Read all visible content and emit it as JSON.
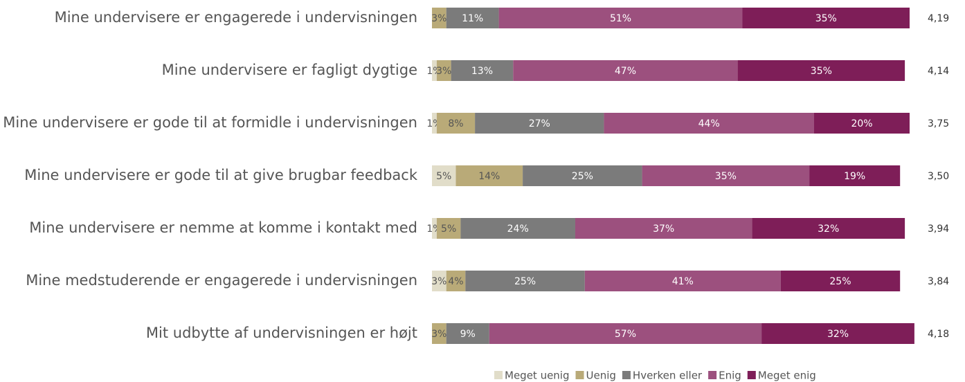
{
  "chart_data": {
    "type": "stacked-bar",
    "categories": [
      "Mine undervisere er engagerede i undervisningen",
      "Mine undervisere er fagligt dygtige",
      "Mine undervisere er gode til at formidle i undervisningen",
      "Mine undervisere er gode til at give brugbar feedback",
      "Mine undervisere er nemme at komme i kontakt med",
      "Mine medstuderende er engagerede i undervisningen",
      "Mit udbytte af undervisningen er højt"
    ],
    "xlim": [
      0,
      100
    ],
    "series": [
      {
        "name": "Meget uenig",
        "color": "#e1ddc9",
        "values": [
          0,
          1,
          1,
          5,
          1,
          3,
          0
        ],
        "value_labels": [
          null,
          "1%",
          "1%",
          "5%",
          "1%",
          "3%",
          null
        ]
      },
      {
        "name": "Uenig",
        "color": "#b9aa78",
        "values": [
          3,
          3,
          8,
          14,
          5,
          4,
          3
        ],
        "value_labels": [
          "3%",
          "3%",
          "8%",
          "14%",
          "5%",
          "4%",
          "3%"
        ]
      },
      {
        "name": "Hverken eller",
        "color": "#7b7b7b",
        "values": [
          11,
          13,
          27,
          25,
          24,
          25,
          9
        ],
        "value_labels": [
          "11%",
          "13%",
          "27%",
          "25%",
          "24%",
          "25%",
          "9%"
        ]
      },
      {
        "name": "Enig",
        "color": "#9c507e",
        "values": [
          51,
          47,
          44,
          35,
          37,
          41,
          57
        ],
        "value_labels": [
          "51%",
          "47%",
          "44%",
          "35%",
          "37%",
          "41%",
          "57%"
        ]
      },
      {
        "name": "Meget enig",
        "color": "#7e1e58",
        "values": [
          35,
          35,
          20,
          19,
          32,
          25,
          32
        ],
        "value_labels": [
          "35%",
          "35%",
          "20%",
          "19%",
          "32%",
          "25%",
          "32%"
        ]
      }
    ],
    "averages": {
      "values": [
        4.19,
        4.14,
        3.75,
        3.5,
        3.94,
        3.84,
        4.18
      ],
      "value_labels": [
        "4,19",
        "4,14",
        "3,75",
        "3,50",
        "3,94",
        "3,84",
        "4,18"
      ]
    },
    "legend": "bottom"
  }
}
